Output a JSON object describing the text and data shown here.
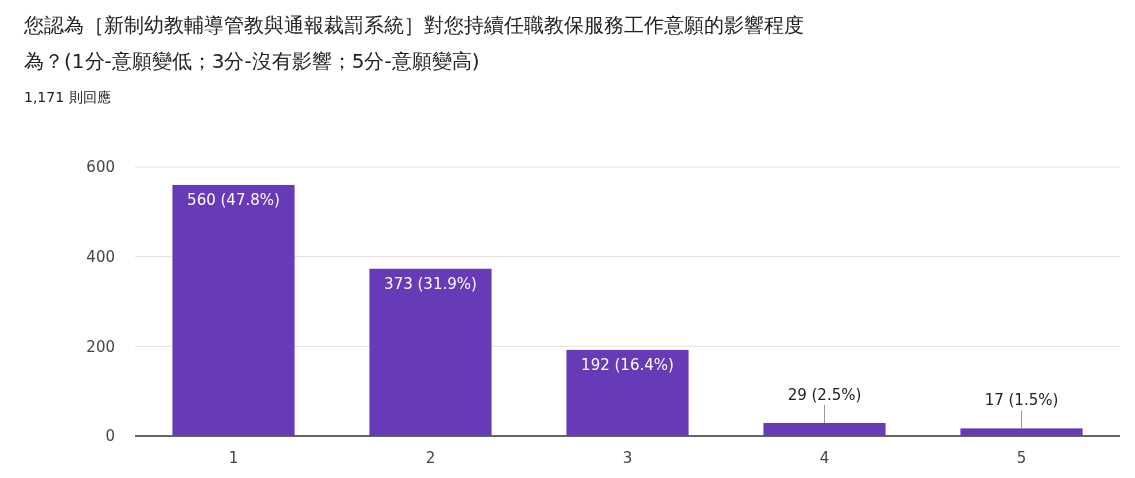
{
  "chart_data": {
    "type": "bar",
    "title": "您認為［新制幼教輔導管教與通報裁罰系統］對您持續任職教保服務工作意願的影響程度為？(1分-意願變低；3分-沒有影響；5分-意願變高)",
    "subtitle": "1,171 則回應",
    "categories": [
      "1",
      "2",
      "3",
      "4",
      "5"
    ],
    "values": [
      560,
      373,
      192,
      29,
      17
    ],
    "value_labels": [
      "560 (47.8%)",
      "373 (31.9%)",
      "192 (16.4%)",
      "29 (2.5%)",
      "17 (1.5%)"
    ],
    "color": "#673ab7",
    "ylim": [
      0,
      600
    ],
    "yticks": [
      0,
      200,
      400,
      600
    ],
    "grid": "y"
  }
}
